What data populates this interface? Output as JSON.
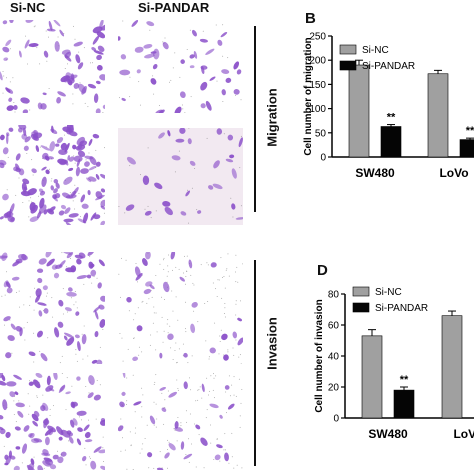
{
  "columns": {
    "left": "Si-NC",
    "right": "Si-PANDAR"
  },
  "side_labels": {
    "top": "Migration",
    "bottom": "Invasion"
  },
  "panel_labels": {
    "b": "B",
    "d": "D"
  },
  "colors": {
    "cell_stain": "#8a4fc9",
    "si_nc": "#a0a0a0",
    "si_pandar": "#050505",
    "bg_light": "#ffffff",
    "bg_pink": "#f2e9f1"
  },
  "chart_data": [
    {
      "type": "bar",
      "panel": "B",
      "categories": [
        "SW480",
        "LoVo"
      ],
      "series": [
        {
          "name": "Si-NC",
          "values": [
            190,
            172
          ],
          "errors": [
            10,
            7
          ]
        },
        {
          "name": "Si-PANDAR",
          "values": [
            63,
            36
          ],
          "errors": [
            4,
            3
          ]
        }
      ],
      "significance": [
        "**",
        "**"
      ],
      "ylabel": "Cell number of migration",
      "yticks": [
        0,
        50,
        100,
        150,
        200,
        250
      ],
      "ylim": [
        0,
        250
      ],
      "legend": "top-left"
    },
    {
      "type": "bar",
      "panel": "D",
      "categories": [
        "SW480",
        "LoVo"
      ],
      "series": [
        {
          "name": "Si-NC",
          "values": [
            53,
            66
          ],
          "errors": [
            4,
            3
          ]
        },
        {
          "name": "Si-PANDAR",
          "values": [
            18,
            0
          ],
          "errors": [
            2,
            0
          ]
        }
      ],
      "significance": [
        "**",
        ""
      ],
      "ylabel": "Cell number of invasion",
      "yticks": [
        0,
        20,
        40,
        60,
        80
      ],
      "ylim": [
        0,
        80
      ],
      "legend": "top-left"
    }
  ]
}
